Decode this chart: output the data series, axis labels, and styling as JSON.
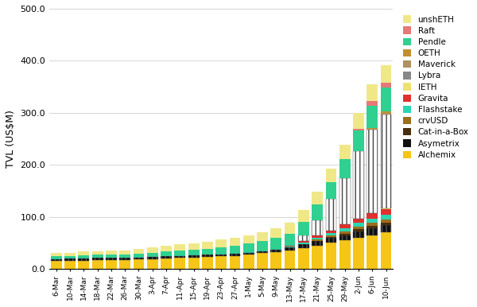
{
  "dates": [
    "6-Mar",
    "10-Mar",
    "14-Mar",
    "18-Mar",
    "22-Mar",
    "26-Mar",
    "30-Mar",
    "3-Apr",
    "7-Apr",
    "11-Apr",
    "15-Apr",
    "19-Apr",
    "23-Apr",
    "27-Apr",
    "1-May",
    "5-May",
    "9-May",
    "13-May",
    "17-May",
    "21-May",
    "25-May",
    "29-May",
    "2-Jun",
    "6-Jun",
    "10-Jun"
  ],
  "series": {
    "Alchemix": [
      15,
      16,
      16,
      17,
      17,
      17,
      18,
      19,
      20,
      21,
      22,
      23,
      24,
      25,
      27,
      30,
      32,
      35,
      40,
      45,
      50,
      55,
      60,
      65,
      70
    ],
    "Asymetrix": [
      4,
      4,
      4,
      4,
      4,
      4,
      4,
      4,
      4,
      4,
      4,
      4,
      4,
      4,
      4,
      4,
      5,
      6,
      7,
      8,
      9,
      10,
      12,
      13,
      14
    ],
    "Cat-in-a-Box": [
      0,
      0,
      0,
      0,
      0,
      0,
      0,
      0,
      0,
      0,
      0,
      0,
      0,
      0,
      0,
      0,
      0,
      0,
      0,
      1,
      2,
      3,
      4,
      5,
      5
    ],
    "crvUSD": [
      0,
      0,
      0,
      0,
      0,
      0,
      0,
      0,
      0,
      0,
      0,
      0,
      0,
      0,
      0,
      0,
      0,
      0,
      1,
      2,
      3,
      4,
      5,
      6,
      6
    ],
    "Flashstake": [
      1,
      1,
      1,
      1,
      1,
      1,
      1,
      1,
      1,
      1,
      1,
      1,
      1,
      1,
      1,
      1,
      2,
      2,
      3,
      4,
      5,
      6,
      7,
      8,
      9
    ],
    "Gravita": [
      0,
      0,
      0,
      0,
      0,
      0,
      0,
      0,
      0,
      0,
      0,
      0,
      0,
      0,
      0,
      0,
      0,
      1,
      3,
      4,
      5,
      7,
      8,
      10,
      10
    ],
    "IETH": [
      0,
      0,
      0,
      0,
      0,
      0,
      0,
      0,
      0,
      0,
      0,
      0,
      0,
      0,
      0,
      0,
      0,
      0,
      0,
      0,
      0,
      0,
      0,
      0,
      2
    ],
    "Lybra": [
      0,
      0,
      0,
      0,
      0,
      0,
      0,
      0,
      0,
      0,
      0,
      0,
      0,
      0,
      0,
      0,
      0,
      0,
      10,
      30,
      60,
      90,
      130,
      160,
      180
    ],
    "Maverick": [
      0,
      0,
      0,
      0,
      0,
      0,
      0,
      0,
      0,
      0,
      0,
      0,
      0,
      0,
      0,
      0,
      0,
      0,
      0,
      0,
      0,
      0,
      0,
      2,
      3
    ],
    "OETH": [
      0,
      0,
      0,
      0,
      0,
      0,
      0,
      0,
      0,
      0,
      0,
      0,
      0,
      0,
      0,
      0,
      0,
      0,
      0,
      0,
      0,
      0,
      0,
      2,
      3
    ],
    "Pendle": [
      4,
      4,
      5,
      5,
      5,
      5,
      6,
      7,
      8,
      9,
      10,
      11,
      13,
      15,
      17,
      19,
      21,
      24,
      27,
      30,
      33,
      36,
      40,
      43,
      46
    ],
    "Raft": [
      0,
      0,
      0,
      0,
      0,
      0,
      0,
      0,
      0,
      0,
      0,
      0,
      0,
      0,
      0,
      0,
      0,
      0,
      0,
      0,
      0,
      0,
      3,
      8,
      10
    ],
    "unshETH": [
      6,
      6,
      7,
      7,
      8,
      8,
      9,
      10,
      11,
      12,
      12,
      13,
      14,
      15,
      16,
      17,
      18,
      20,
      22,
      24,
      26,
      28,
      30,
      32,
      34
    ]
  },
  "colors": {
    "Alchemix": "#f5c518",
    "Asymetrix": "#111111",
    "Cat-in-a-Box": "#4a2f0f",
    "crvUSD": "#9b6e1e",
    "Flashstake": "#2dd4b0",
    "Gravita": "#e03030",
    "IETH": "#f0e070",
    "Lybra": "#707070",
    "Maverick": "#b09060",
    "OETH": "#c09030",
    "Pendle": "#30d090",
    "Raft": "#e87878",
    "unshETH": "#f0e888"
  },
  "hatch_series": [
    "Lybra",
    "Asymetrix"
  ],
  "ylabel": "TVL (US$M)",
  "ylim": [
    0,
    500
  ],
  "yticks": [
    0.0,
    100.0,
    200.0,
    300.0,
    400.0,
    500.0
  ],
  "background_color": "#ffffff",
  "grid_color": "#d0d0d0"
}
